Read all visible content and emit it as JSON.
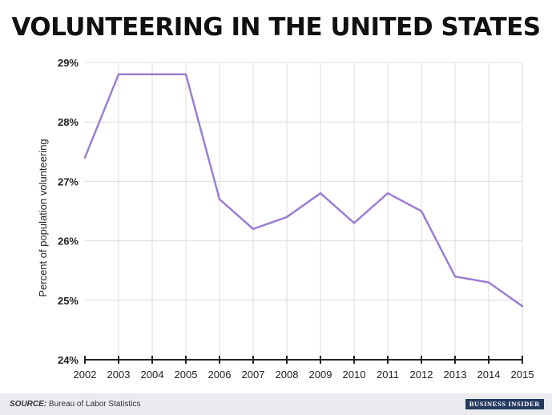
{
  "chart_data": {
    "type": "line",
    "title": "VOLUNTEERING IN THE UNITED STATES",
    "ylabel": "Percent of population volunteering",
    "xlabel": "",
    "x": [
      "2002",
      "2003",
      "2004",
      "2005",
      "2006",
      "2007",
      "2008",
      "2009",
      "2010",
      "2011",
      "2012",
      "2013",
      "2014",
      "2015"
    ],
    "series": [
      {
        "values": [
          27.4,
          28.8,
          28.8,
          28.8,
          26.7,
          26.2,
          26.4,
          26.8,
          26.3,
          26.8,
          26.5,
          25.4,
          25.3,
          24.9
        ],
        "color": "#9b7fd3"
      }
    ],
    "ylim": [
      24,
      29
    ],
    "yticks": [
      24,
      25,
      26,
      27,
      28,
      29
    ],
    "ytick_labels": [
      "24%",
      "25%",
      "26%",
      "27%",
      "28%",
      "29%"
    ],
    "grid": true
  },
  "footer": {
    "source_label": "SOURCE:",
    "source_text": " Bureau of Labor Statistics",
    "logo_text": "BUSINESS INSIDER"
  }
}
